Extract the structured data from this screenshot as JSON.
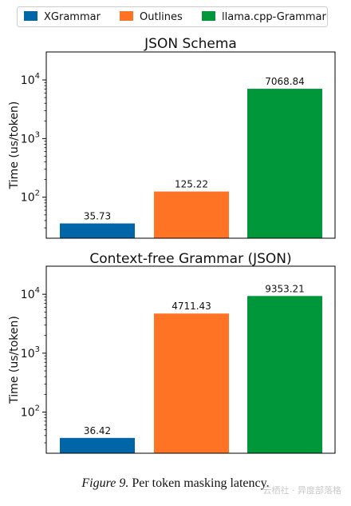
{
  "legend": {
    "placement": "top-center",
    "entries": [
      {
        "label": "XGrammar",
        "color": "#0066a8"
      },
      {
        "label": "Outlines",
        "color": "#ff7424"
      },
      {
        "label": "llama.cpp-Grammar",
        "color": "#00963a"
      }
    ]
  },
  "chart_data": [
    {
      "type": "bar",
      "title": "JSON Schema",
      "ylabel": "Time (us/token)",
      "yscale": "log",
      "ylim": [
        20,
        30000
      ],
      "yticks": [
        100,
        1000,
        10000
      ],
      "grid": false,
      "categories": [
        "XGrammar",
        "Outlines",
        "llama.cpp-Grammar"
      ],
      "values": [
        35.73,
        125.22,
        7068.84
      ],
      "data_labels": [
        "35.73",
        "125.22",
        "7068.84"
      ],
      "colors": [
        "#0066a8",
        "#ff7424",
        "#00963a"
      ]
    },
    {
      "type": "bar",
      "title": "Context-free Grammar (JSON)",
      "ylabel": "Time (us/token)",
      "yscale": "log",
      "ylim": [
        20,
        30000
      ],
      "yticks": [
        100,
        1000,
        10000
      ],
      "grid": false,
      "categories": [
        "XGrammar",
        "Outlines",
        "llama.cpp-Grammar"
      ],
      "values": [
        36.42,
        4711.43,
        9353.21
      ],
      "data_labels": [
        "36.42",
        "4711.43",
        "9353.21"
      ],
      "colors": [
        "#0066a8",
        "#ff7424",
        "#00963a"
      ]
    }
  ],
  "caption": {
    "label": "Figure 9.",
    "text": " Per token masking latency."
  },
  "watermark": "云栖社 · 异度部落格"
}
